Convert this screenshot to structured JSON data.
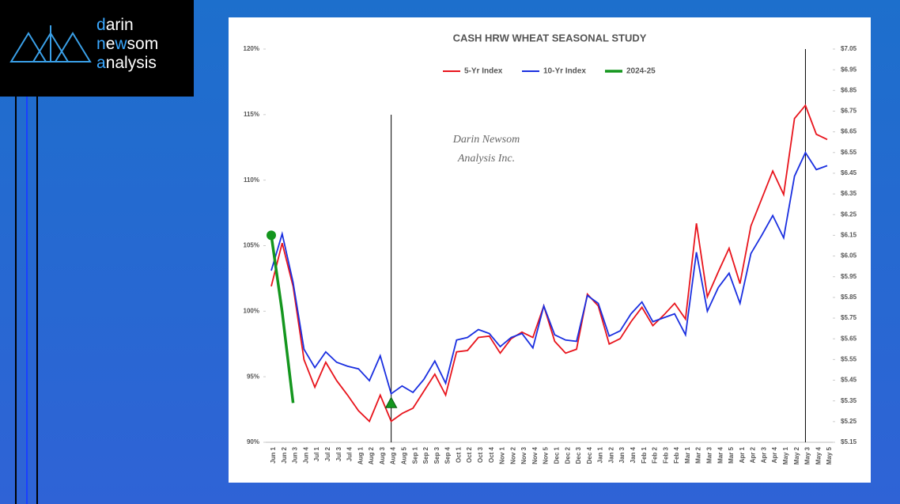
{
  "logo": [
    [
      "d",
      "arin"
    ],
    [
      "n",
      "e",
      "w",
      "som"
    ],
    [
      "a",
      "nalysis"
    ]
  ],
  "chart_data": {
    "type": "line",
    "title": "CASH HRW WHEAT SEASONAL STUDY",
    "annotations": [
      "Darin Newsom",
      "Analysis Inc."
    ],
    "categories": [
      "Jun 1",
      "Jun 2",
      "Jun 3",
      "Jun 4",
      "Jul 1",
      "Jul 2",
      "Jul 3",
      "Jul 4",
      "Aug 1",
      "Aug 2",
      "Aug 3",
      "Aug 4",
      "Aug 5",
      "Sep 1",
      "Sep 2",
      "Sep 3",
      "Sep 4",
      "Oct 1",
      "Oct 2",
      "Oct 3",
      "Oct 4",
      "Nov 1",
      "Nov 2",
      "Nov 3",
      "Nov 4",
      "Nov 5",
      "Dec 1",
      "Dec 2",
      "Dec 3",
      "Dec 4",
      "Jan 1",
      "Jan 2",
      "Jan 3",
      "Jan 4",
      "Feb 1",
      "Feb 2",
      "Feb 3",
      "Feb 4",
      "Mar 1",
      "Mar 2",
      "Mar 3",
      "Mar 4",
      "Mar 5",
      "Apr 1",
      "Apr 2",
      "Apr 3",
      "Apr 4",
      "May 1",
      "May 2",
      "May 3",
      "May 4",
      "May 5"
    ],
    "series": [
      {
        "name": "5-Yr Index",
        "color": "#e8141c",
        "values": [
          101.9,
          105.2,
          101.9,
          96.3,
          94.2,
          96.1,
          94.7,
          93.6,
          92.4,
          91.6,
          93.6,
          91.6,
          92.2,
          92.6,
          93.9,
          95.2,
          93.6,
          96.9,
          97.0,
          98.0,
          98.1,
          96.8,
          97.9,
          98.4,
          98.0,
          100.4,
          97.7,
          96.8,
          97.1,
          101.3,
          100.4,
          97.5,
          97.9,
          99.2,
          100.3,
          98.9,
          99.7,
          100.6,
          99.4,
          106.7,
          101.1,
          103.0,
          104.8,
          102.1,
          106.5,
          108.6,
          110.7,
          108.9,
          114.7,
          115.7,
          113.5,
          113.1
        ]
      },
      {
        "name": "10-Yr Index",
        "color": "#1a2fe0",
        "values": [
          103.1,
          105.9,
          102.2,
          97.1,
          95.7,
          96.9,
          96.1,
          95.8,
          95.6,
          94.7,
          96.6,
          93.7,
          94.3,
          93.8,
          94.8,
          96.2,
          94.5,
          97.8,
          98.0,
          98.6,
          98.3,
          97.3,
          98.0,
          98.3,
          97.2,
          100.4,
          98.2,
          97.8,
          97.7,
          101.2,
          100.6,
          98.1,
          98.5,
          99.8,
          100.7,
          99.2,
          99.5,
          99.8,
          98.2,
          104.5,
          100.0,
          101.8,
          102.9,
          100.6,
          104.4,
          105.8,
          107.3,
          105.6,
          110.3,
          112.1,
          110.8,
          111.1
        ]
      },
      {
        "name": "2024-25",
        "color": "#14961e",
        "axis": "y2",
        "values": [
          6.15,
          5.78,
          5.34,
          null,
          null,
          null,
          null,
          null,
          null,
          null,
          null,
          5.34,
          null,
          null,
          null,
          null,
          null,
          null,
          null,
          null,
          null,
          null,
          null,
          null,
          null,
          null,
          null,
          null,
          null,
          null,
          null,
          null,
          null,
          null,
          null,
          null,
          null,
          null,
          null,
          null,
          null,
          null,
          null,
          null,
          null,
          null,
          null,
          null,
          null,
          null,
          null,
          null
        ]
      }
    ],
    "vlines": [
      "Aug 4",
      "May 3"
    ],
    "ylim": [
      90,
      120
    ],
    "yticks": [
      {
        "value": 90,
        "label": "90%"
      },
      {
        "value": 95,
        "label": "95%"
      },
      {
        "value": 100,
        "label": "100%"
      },
      {
        "value": 105,
        "label": "105%"
      },
      {
        "value": 110,
        "label": "110%"
      },
      {
        "value": 115,
        "label": "115%"
      },
      {
        "value": 120,
        "label": "120%"
      }
    ],
    "y2lim": [
      5.15,
      7.05
    ],
    "y2ticks": [
      {
        "value": 5.15,
        "label": "$5.15"
      },
      {
        "value": 5.25,
        "label": "$5.25"
      },
      {
        "value": 5.35,
        "label": "$5.35"
      },
      {
        "value": 5.45,
        "label": "$5.45"
      },
      {
        "value": 5.55,
        "label": "$5.55"
      },
      {
        "value": 5.65,
        "label": "$5.65"
      },
      {
        "value": 5.75,
        "label": "$5.75"
      },
      {
        "value": 5.85,
        "label": "$5.85"
      },
      {
        "value": 5.95,
        "label": "$5.95"
      },
      {
        "value": 6.05,
        "label": "$6.05"
      },
      {
        "value": 6.15,
        "label": "$6.15"
      },
      {
        "value": 6.25,
        "label": "$6.25"
      },
      {
        "value": 6.35,
        "label": "$6.35"
      },
      {
        "value": 6.45,
        "label": "$6.45"
      },
      {
        "value": 6.55,
        "label": "$6.55"
      },
      {
        "value": 6.65,
        "label": "$6.65"
      },
      {
        "value": 6.75,
        "label": "$6.75"
      },
      {
        "value": 6.85,
        "label": "$6.85"
      },
      {
        "value": 6.95,
        "label": "$6.95"
      },
      {
        "value": 7.05,
        "label": "$7.05"
      }
    ],
    "grid": false,
    "legend": "top"
  }
}
